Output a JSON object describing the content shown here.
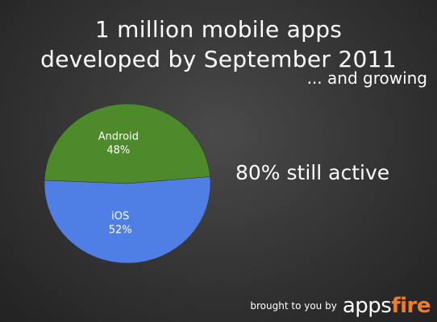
{
  "header": {
    "title_line1": "1 million mobile apps",
    "title_line2": "developed by September 2011",
    "subtitle": "... and growing"
  },
  "callout": "80% still active",
  "footer": {
    "credit": "brought to you by",
    "logo_part1": "apps",
    "logo_part2": "fire"
  },
  "colors": {
    "android": "#4d8a2a",
    "ios": "#4f7fe4",
    "background": "#3b3b3b",
    "logo_accent": "#f07e26"
  },
  "chart_data": {
    "type": "pie",
    "title": "1 million mobile apps developed by September 2011",
    "slices": [
      {
        "name": "Android",
        "value": 48,
        "label": "48%",
        "color": "#4d8a2a"
      },
      {
        "name": "iOS",
        "value": 52,
        "label": "52%",
        "color": "#4f7fe4"
      }
    ]
  }
}
